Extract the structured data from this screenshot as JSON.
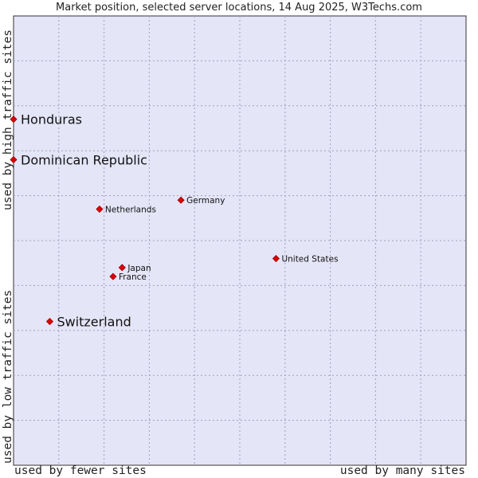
{
  "title": "Market position, selected server locations, 14 Aug 2025, W3Techs.com",
  "y_axis": {
    "high_label": "used by high traffic sites",
    "low_label": "used by low traffic sites"
  },
  "x_axis": {
    "low_label": "used by fewer sites",
    "high_label": "used by many sites"
  },
  "colors": {
    "plot_background": "#e5e5f8",
    "grid": "#a0a0b8",
    "point": "#dd0000",
    "text": "#222222"
  },
  "chart_data": {
    "type": "scatter",
    "title": "Market position, selected server locations, 14 Aug 2025, W3Techs.com",
    "xlabel": "used by fewer sites → used by many sites",
    "ylabel": "used by low traffic sites → used by high traffic sites",
    "xlim": [
      0,
      10
    ],
    "ylim": [
      0,
      10
    ],
    "grid": true,
    "points": [
      {
        "label": "Honduras",
        "x": 0.0,
        "y": 7.7,
        "highlight": true
      },
      {
        "label": "Dominican Republic",
        "x": 0.0,
        "y": 6.8,
        "highlight": true
      },
      {
        "label": "Germany",
        "x": 3.7,
        "y": 5.9,
        "highlight": false
      },
      {
        "label": "Netherlands",
        "x": 1.9,
        "y": 5.7,
        "highlight": false
      },
      {
        "label": "United States",
        "x": 5.8,
        "y": 4.6,
        "highlight": false
      },
      {
        "label": "Japan",
        "x": 2.4,
        "y": 4.4,
        "highlight": false
      },
      {
        "label": "France",
        "x": 2.2,
        "y": 4.2,
        "highlight": false
      },
      {
        "label": "Switzerland",
        "x": 0.8,
        "y": 3.2,
        "highlight": true
      }
    ]
  }
}
